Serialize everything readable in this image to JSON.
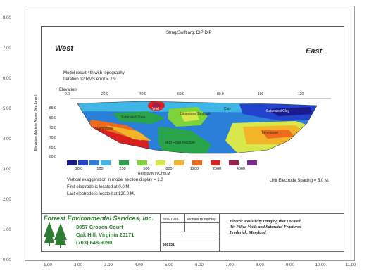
{
  "page_axis": {
    "y_labels": [
      "8.00",
      "7.00",
      "6.00",
      "5.00",
      "4.00",
      "3.00",
      "2.00",
      "1.00",
      "0.00"
    ],
    "x_labels": [
      "1.00",
      "2.00",
      "3.00",
      "4.00",
      "5.00",
      "6.00",
      "7.00",
      "8.00",
      "9.00",
      "10.00",
      "11.00"
    ]
  },
  "section": {
    "title": "Strng/Swift arg: DIP-DIP",
    "west_label": "West",
    "east_label": "East",
    "model_note_1": "Model result 4th with topography",
    "model_note_2": "Iteration 12 RMS error = 2.9",
    "elevation_label": "Elevation",
    "distance_ticks": [
      "0.0",
      "20.0",
      "40.0",
      "60.0",
      "80.0",
      "100",
      "120"
    ],
    "depth_axis_title": "Elevation (Meters Above Sea Level)",
    "depth_ticks": [
      "85.0",
      "80.0",
      "75.0",
      "70.0",
      "65.0",
      "60.0"
    ],
    "annotations": {
      "void": "Void",
      "saturated_zone": "Saturated Zone",
      "limestone_left": "Limestone",
      "limestone_bedrock": "Limestone Bedrock",
      "clay": "Clay",
      "clay_right": "Saturated Clay",
      "mud_fracture": "Mud Filled Fracture",
      "limestone_right": "Limestone"
    }
  },
  "legend": {
    "values": [
      "10.0",
      "100",
      "250",
      "500",
      "800",
      "1200",
      "2000",
      "4000"
    ],
    "colors": [
      "#1a1a8c",
      "#2244cc",
      "#2a7fd8",
      "#3fb6e6",
      "#2aa44a",
      "#7fd33a",
      "#d8e84a",
      "#f2b52a",
      "#ee6a1c",
      "#d82020",
      "#a01f4a",
      "#7a2a8a"
    ],
    "caption": "Resistivity in Ohm.M"
  },
  "notes": {
    "vertical_exag": "Vertical exaggeration in model section display = 1.0",
    "first_electrode": "First electrode is located at 0.0 M.",
    "last_electrode": "Last electrode is located at 120.0 M.",
    "spacing": "Unit Electrode Spacing = 5.0 M."
  },
  "company": {
    "name": "Forrest Environmental Services, Inc.",
    "street": "3057 Crosen Court",
    "city": "Oak Hill, Virginia  20171",
    "phone": "(703) 648-9090"
  },
  "title_block": {
    "date": "June 1999",
    "drawn": "Michael Humphrey",
    "project_no": "980131",
    "title_line1": "Electric Resistivity Imaging that Located",
    "title_line2": "Air Filled Voids and Saturated Fractures",
    "title_line3": "Frederick, Maryland"
  }
}
